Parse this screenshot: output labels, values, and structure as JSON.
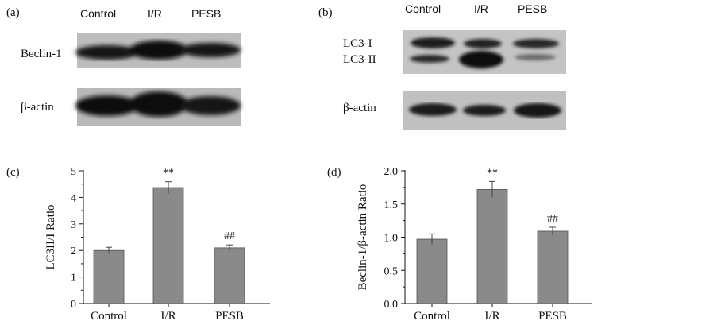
{
  "panel_a": {
    "label": "(a)",
    "lanes": [
      "Control",
      "I/R",
      "PESB"
    ],
    "rows": [
      "Beclin-1",
      "β-actin"
    ]
  },
  "panel_b": {
    "label": "(b)",
    "lanes": [
      "Control",
      "I/R",
      "PESB"
    ],
    "rows": [
      "LC3-I",
      "LC3-II",
      "β-actin"
    ]
  },
  "chart_data": [
    {
      "panel": "(c)",
      "type": "bar",
      "categories": [
        "Control",
        "I/R",
        "PESB"
      ],
      "values": [
        2.0,
        4.37,
        2.1
      ],
      "errors": [
        0.12,
        0.22,
        0.11
      ],
      "annotations": [
        "",
        "**",
        "##"
      ],
      "ylabel": "LC3II/I  Ratio",
      "xlabel": "",
      "ylim": [
        0,
        5
      ],
      "yticks": [
        "0",
        "1",
        "2",
        "3",
        "4",
        "5"
      ],
      "grid": false,
      "bar_color": "#8a8a8a"
    },
    {
      "panel": "(d)",
      "type": "bar",
      "categories": [
        "Control",
        "I/R",
        "PESB"
      ],
      "values": [
        0.97,
        1.72,
        1.09
      ],
      "errors": [
        0.08,
        0.12,
        0.06
      ],
      "annotations": [
        "",
        "**",
        "##"
      ],
      "ylabel": "Beclin-1/β-actin Ratio",
      "xlabel": "",
      "ylim": [
        0,
        2.0
      ],
      "yticks": [
        "0.0",
        "0.5",
        "1.0",
        "1.5",
        "2.0"
      ],
      "grid": false,
      "bar_color": "#8a8a8a"
    }
  ]
}
